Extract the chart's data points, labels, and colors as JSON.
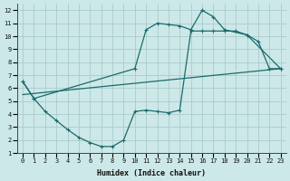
{
  "xlabel": "Humidex (Indice chaleur)",
  "bg_color": "#cde8e8",
  "grid_color": "#aacccc",
  "line_color": "#1a6b6b",
  "xlim": [
    -0.5,
    23.5
  ],
  "ylim": [
    1,
    12.5
  ],
  "xticks": [
    0,
    1,
    2,
    3,
    4,
    5,
    6,
    7,
    8,
    9,
    10,
    11,
    12,
    13,
    14,
    15,
    16,
    17,
    18,
    19,
    20,
    21,
    22,
    23
  ],
  "yticks": [
    1,
    2,
    3,
    4,
    5,
    6,
    7,
    8,
    9,
    10,
    11,
    12
  ],
  "line1_x": [
    0,
    1,
    2,
    3,
    4,
    5,
    6,
    7,
    8,
    9,
    10,
    11,
    12,
    13,
    14,
    15,
    16,
    17,
    18,
    19,
    20,
    21,
    22,
    23
  ],
  "line1_y": [
    6.5,
    5.2,
    4.2,
    3.5,
    2.8,
    2.2,
    1.8,
    1.5,
    1.5,
    2.0,
    4.2,
    4.3,
    4.2,
    4.1,
    4.3,
    10.4,
    10.4,
    10.4,
    10.4,
    10.4,
    10.1,
    9.6,
    7.5,
    7.5
  ],
  "line2_x": [
    0,
    1,
    10,
    11,
    12,
    13,
    14,
    15,
    16,
    17,
    18,
    20,
    23
  ],
  "line2_y": [
    6.5,
    5.2,
    7.5,
    10.5,
    11.0,
    10.9,
    10.8,
    10.5,
    12.0,
    11.5,
    10.5,
    10.1,
    7.5
  ],
  "line3_x": [
    0,
    23
  ],
  "line3_y": [
    5.5,
    7.5
  ],
  "font_family": "monospace"
}
